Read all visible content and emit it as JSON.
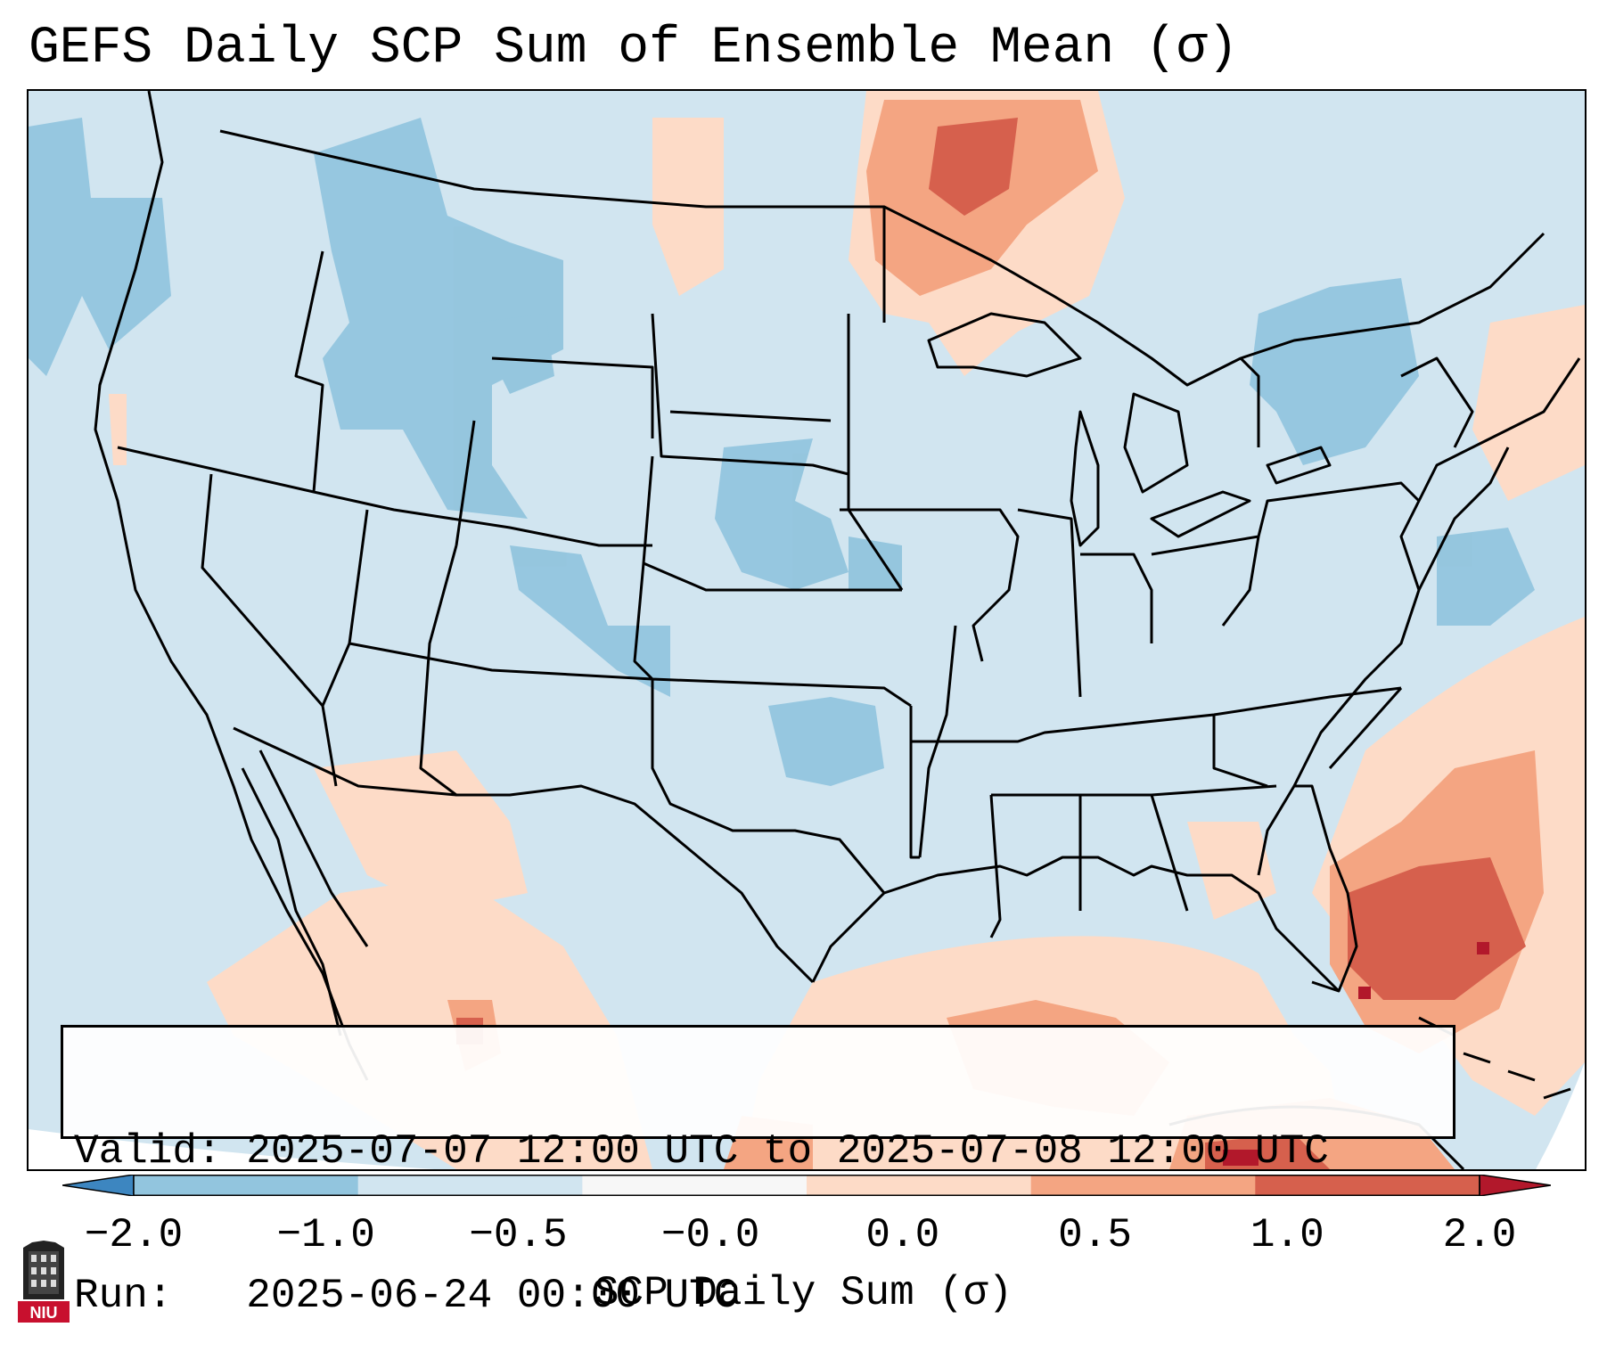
{
  "title": "GEFS Daily SCP Sum of Ensemble Mean (σ)",
  "info_box": {
    "valid_line": "Valid: 2025-07-07 12:00 UTC to 2025-07-08 12:00 UTC",
    "run_line": "Run:   2025-06-24 00:00 UTC"
  },
  "colorbar": {
    "label": "SCP Daily Sum (σ)",
    "ticks": [
      "−2.0",
      "−1.0",
      "−0.5",
      "−0.0",
      "0.0",
      "0.5",
      "1.0",
      "2.0"
    ],
    "colors": [
      "#3d86c0",
      "#92c5de",
      "#d1e5f0",
      "#f7f7f7",
      "#fddbc7",
      "#f4a582",
      "#d6604d",
      "#b2182b"
    ],
    "extend": "both"
  },
  "map": {
    "region": "Continental United States",
    "projection": "Lambert Conformal",
    "background_anomaly": "−0.5 to −0.0",
    "features": {
      "positive_centers": [
        {
          "name": "Southern Ontario / north of Minnesota",
          "value": "0.5 to 1.0"
        },
        {
          "name": "Western Atlantic off Southeast coast",
          "value": "1.0 to 2.0"
        },
        {
          "name": "Gulf of Mexico",
          "value": "0.5 to 1.0"
        },
        {
          "name": "Sierra Madre Occidental, Mexico",
          "value": "0.5 to 1.0"
        },
        {
          "name": "Cuba / Caribbean",
          "value": "1.0 to 2.0"
        }
      ],
      "negative_centers": [
        {
          "name": "Northern Rockies / Idaho",
          "value": "−1.0 to −0.5"
        },
        {
          "name": "Nebraska / South Dakota",
          "value": "−1.0 to −0.5"
        },
        {
          "name": "Western Oklahoma",
          "value": "−1.0 to −0.5"
        },
        {
          "name": "New York / Quebec",
          "value": "−1.0 to −0.5"
        }
      ]
    }
  },
  "logo": {
    "text": "NIU",
    "brand_color": "#c8102e"
  }
}
